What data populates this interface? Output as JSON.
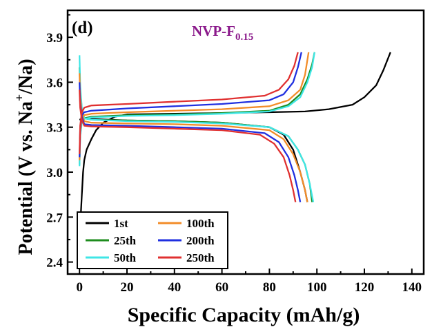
{
  "chart_data": {
    "type": "line",
    "panel_label": "(d)",
    "title_main": "NVP-F",
    "title_sub": "0.15",
    "title_color": "#8B1A8B",
    "xlabel": "Specific Capacity (mAh/g)",
    "ylabel_main": "Potential (V vs. Na",
    "ylabel_sup": "+",
    "ylabel_end": "/Na)",
    "xlim": [
      -5,
      145
    ],
    "ylim": [
      2.32,
      4.08
    ],
    "x_ticks": [
      0,
      20,
      40,
      60,
      80,
      100,
      120,
      140
    ],
    "x_tick_labels": [
      "0",
      "20",
      "40",
      "60",
      "80",
      "100",
      "120",
      "140"
    ],
    "y_ticks": [
      2.4,
      2.7,
      3.0,
      3.3,
      3.6,
      3.9
    ],
    "y_tick_labels": [
      "2.4",
      "2.7",
      "3.0",
      "3.3",
      "3.6",
      "3.9"
    ],
    "grid": false,
    "legend_position": "bottom-left",
    "series": [
      {
        "name": "1st",
        "color": "#000000",
        "charge": [
          [
            0,
            2.48
          ],
          [
            0.5,
            2.7
          ],
          [
            1,
            2.85
          ],
          [
            1.5,
            3.0
          ],
          [
            2,
            3.08
          ],
          [
            3,
            3.15
          ],
          [
            5,
            3.22
          ],
          [
            7,
            3.28
          ],
          [
            10,
            3.33
          ],
          [
            15,
            3.37
          ],
          [
            20,
            3.385
          ],
          [
            40,
            3.39
          ],
          [
            60,
            3.395
          ],
          [
            80,
            3.4
          ],
          [
            95,
            3.405
          ],
          [
            105,
            3.42
          ],
          [
            115,
            3.45
          ],
          [
            120,
            3.5
          ],
          [
            125,
            3.58
          ],
          [
            128,
            3.68
          ],
          [
            131,
            3.8
          ]
        ],
        "discharge": [
          [
            0,
            3.35
          ],
          [
            2,
            3.36
          ],
          [
            5,
            3.355
          ],
          [
            20,
            3.345
          ],
          [
            40,
            3.34
          ],
          [
            60,
            3.33
          ],
          [
            80,
            3.3
          ],
          [
            86,
            3.25
          ],
          [
            90,
            3.15
          ],
          [
            93,
            3.0
          ],
          [
            95,
            2.88
          ],
          [
            96,
            2.8
          ]
        ]
      },
      {
        "name": "25th",
        "color": "#1E8C1E",
        "charge": [
          [
            0,
            3.05
          ],
          [
            0.3,
            3.25
          ],
          [
            1,
            3.34
          ],
          [
            2,
            3.36
          ],
          [
            5,
            3.37
          ],
          [
            20,
            3.38
          ],
          [
            40,
            3.385
          ],
          [
            60,
            3.395
          ],
          [
            80,
            3.41
          ],
          [
            88,
            3.45
          ],
          [
            93,
            3.52
          ],
          [
            96,
            3.62
          ],
          [
            98,
            3.72
          ],
          [
            99,
            3.8
          ]
        ],
        "discharge": [
          [
            0,
            3.7
          ],
          [
            0.3,
            3.55
          ],
          [
            1,
            3.42
          ],
          [
            2,
            3.36
          ],
          [
            5,
            3.35
          ],
          [
            20,
            3.345
          ],
          [
            40,
            3.34
          ],
          [
            60,
            3.33
          ],
          [
            80,
            3.3
          ],
          [
            88,
            3.24
          ],
          [
            92,
            3.15
          ],
          [
            95,
            3.05
          ],
          [
            97,
            2.92
          ],
          [
            98,
            2.8
          ]
        ]
      },
      {
        "name": "50th",
        "color": "#3FE6E6",
        "charge": [
          [
            0,
            3.04
          ],
          [
            0.3,
            3.24
          ],
          [
            1,
            3.33
          ],
          [
            2,
            3.355
          ],
          [
            5,
            3.365
          ],
          [
            20,
            3.375
          ],
          [
            40,
            3.38
          ],
          [
            60,
            3.39
          ],
          [
            80,
            3.405
          ],
          [
            88,
            3.44
          ],
          [
            93,
            3.5
          ],
          [
            96,
            3.6
          ],
          [
            98,
            3.7
          ],
          [
            99,
            3.8
          ]
        ],
        "discharge": [
          [
            0,
            3.78
          ],
          [
            0.3,
            3.58
          ],
          [
            1,
            3.43
          ],
          [
            2,
            3.36
          ],
          [
            5,
            3.35
          ],
          [
            20,
            3.34
          ],
          [
            40,
            3.335
          ],
          [
            60,
            3.325
          ],
          [
            80,
            3.3
          ],
          [
            88,
            3.24
          ],
          [
            92,
            3.15
          ],
          [
            95,
            3.05
          ],
          [
            97,
            2.92
          ],
          [
            98.5,
            2.8
          ]
        ]
      },
      {
        "name": "100th",
        "color": "#F28C28",
        "charge": [
          [
            0,
            3.08
          ],
          [
            0.3,
            3.27
          ],
          [
            1,
            3.36
          ],
          [
            2,
            3.38
          ],
          [
            5,
            3.39
          ],
          [
            20,
            3.4
          ],
          [
            40,
            3.41
          ],
          [
            60,
            3.42
          ],
          [
            80,
            3.44
          ],
          [
            88,
            3.48
          ],
          [
            93,
            3.55
          ],
          [
            95,
            3.65
          ],
          [
            96.5,
            3.8
          ]
        ],
        "discharge": [
          [
            0,
            3.66
          ],
          [
            0.3,
            3.5
          ],
          [
            1,
            3.4
          ],
          [
            2,
            3.34
          ],
          [
            5,
            3.33
          ],
          [
            20,
            3.325
          ],
          [
            40,
            3.32
          ],
          [
            60,
            3.31
          ],
          [
            80,
            3.28
          ],
          [
            86,
            3.22
          ],
          [
            90,
            3.12
          ],
          [
            93,
            3.0
          ],
          [
            95,
            2.88
          ],
          [
            96,
            2.8
          ]
        ]
      },
      {
        "name": "200th",
        "color": "#1F2FE0",
        "charge": [
          [
            0,
            3.1
          ],
          [
            0.3,
            3.29
          ],
          [
            1,
            3.38
          ],
          [
            2,
            3.4
          ],
          [
            5,
            3.41
          ],
          [
            20,
            3.425
          ],
          [
            40,
            3.44
          ],
          [
            60,
            3.455
          ],
          [
            80,
            3.48
          ],
          [
            86,
            3.52
          ],
          [
            90,
            3.6
          ],
          [
            92,
            3.7
          ],
          [
            93.5,
            3.8
          ]
        ],
        "discharge": [
          [
            0,
            3.6
          ],
          [
            0.3,
            3.46
          ],
          [
            1,
            3.37
          ],
          [
            2,
            3.32
          ],
          [
            5,
            3.315
          ],
          [
            20,
            3.31
          ],
          [
            40,
            3.3
          ],
          [
            60,
            3.29
          ],
          [
            78,
            3.26
          ],
          [
            84,
            3.2
          ],
          [
            88,
            3.1
          ],
          [
            90.5,
            2.98
          ],
          [
            92,
            2.88
          ],
          [
            93,
            2.8
          ]
        ]
      },
      {
        "name": "250th",
        "color": "#E03030",
        "charge": [
          [
            0,
            3.12
          ],
          [
            0.3,
            3.31
          ],
          [
            1,
            3.4
          ],
          [
            2,
            3.43
          ],
          [
            5,
            3.445
          ],
          [
            20,
            3.455
          ],
          [
            40,
            3.47
          ],
          [
            60,
            3.485
          ],
          [
            78,
            3.51
          ],
          [
            84,
            3.55
          ],
          [
            88,
            3.62
          ],
          [
            90.5,
            3.71
          ],
          [
            92,
            3.8
          ]
        ],
        "discharge": [
          [
            0,
            3.55
          ],
          [
            0.3,
            3.43
          ],
          [
            1,
            3.35
          ],
          [
            2,
            3.31
          ],
          [
            5,
            3.305
          ],
          [
            20,
            3.3
          ],
          [
            40,
            3.29
          ],
          [
            60,
            3.28
          ],
          [
            76,
            3.25
          ],
          [
            82,
            3.19
          ],
          [
            86,
            3.1
          ],
          [
            88.5,
            2.98
          ],
          [
            90,
            2.88
          ],
          [
            91,
            2.8
          ]
        ]
      }
    ],
    "legend_order": [
      "1st",
      "100th",
      "25th",
      "200th",
      "50th",
      "250th"
    ]
  }
}
